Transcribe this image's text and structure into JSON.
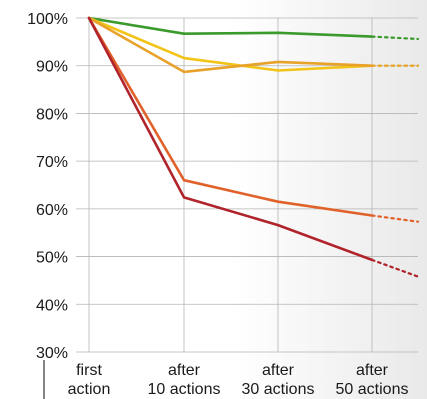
{
  "chart_data": {
    "type": "line",
    "title": "",
    "xlabel": "",
    "ylabel": "",
    "categories": [
      [
        "first",
        "action"
      ],
      [
        "after",
        "10 actions"
      ],
      [
        "after",
        "30 actions"
      ],
      [
        "after",
        "50 actions"
      ]
    ],
    "y_ticks": [
      "100%",
      "90%",
      "80%",
      "70%",
      "60%",
      "50%",
      "40%",
      "30%"
    ],
    "y_tick_values": [
      100,
      90,
      80,
      70,
      60,
      50,
      40,
      30
    ],
    "ylim": [
      30,
      100
    ],
    "grid": true,
    "legend": "none",
    "projection_note": "dotted continuation after last category",
    "series": [
      {
        "color": "#3a9a2c",
        "values": [
          100,
          96.7,
          96.9,
          96.1
        ],
        "projection": 95.6
      },
      {
        "color": "#f2c418",
        "values": [
          100,
          91.6,
          89.0,
          90.0
        ],
        "projection": 90.0
      },
      {
        "color": "#e8a22a",
        "values": [
          100,
          88.7,
          90.8,
          90.0
        ],
        "projection": 90.0
      },
      {
        "color": "#e0622a",
        "values": [
          100,
          66.0,
          61.5,
          58.6
        ],
        "projection": 57.3
      },
      {
        "color": "#b0232a",
        "values": [
          100,
          62.4,
          56.6,
          49.3
        ],
        "projection": 45.8
      }
    ]
  }
}
